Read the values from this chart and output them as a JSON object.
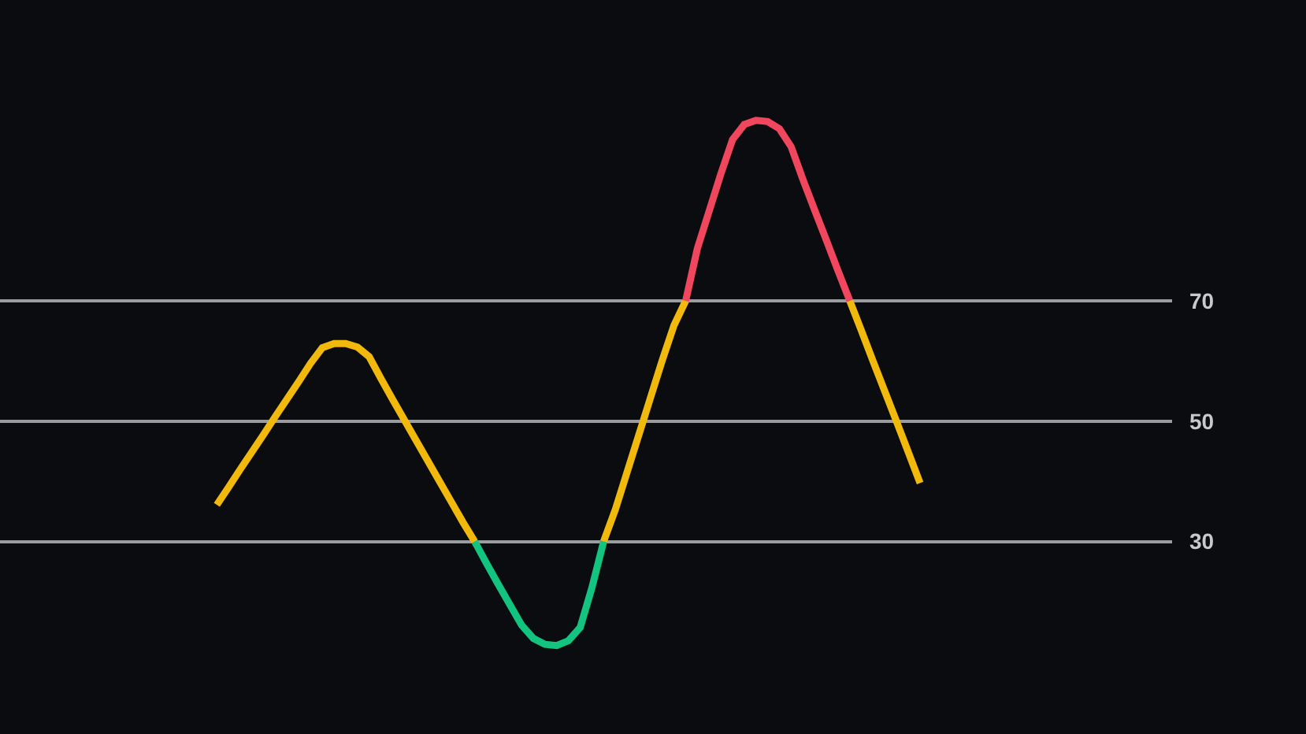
{
  "chart_data": {
    "type": "line",
    "categories": [
      null,
      null,
      null,
      null,
      null,
      null,
      null,
      null,
      null,
      null,
      null,
      null,
      null,
      null,
      null,
      null,
      null,
      null,
      null,
      null,
      null,
      null,
      null,
      null,
      null,
      null,
      null,
      null,
      null,
      null,
      null,
      null,
      null,
      null,
      null,
      null,
      null,
      null,
      null,
      null,
      null,
      null,
      null,
      null,
      null,
      null,
      null,
      null,
      null,
      null,
      null,
      null,
      null,
      null,
      null,
      null,
      null,
      null,
      null,
      null,
      null,
      null,
      null,
      null,
      null,
      null,
      null,
      null,
      null,
      null,
      null,
      null,
      null,
      null,
      null,
      null,
      null,
      null,
      null,
      null,
      null,
      null,
      null,
      null,
      null,
      null,
      null,
      null,
      null,
      null,
      null,
      null,
      null,
      null,
      null,
      null,
      null,
      null,
      null,
      null
    ],
    "series": [
      {
        "color": "#f0b90b",
        "values": [
          null,
          null,
          null,
          null,
          null,
          null,
          null,
          null,
          null,
          null,
          null,
          null,
          null,
          null,
          null,
          null,
          null,
          null,
          36.1,
          39,
          42,
          44.9,
          47.8,
          50.8,
          53.7,
          56.6,
          59.6,
          62.2,
          62.9,
          62.9,
          62.3,
          60.7,
          57.1,
          53.6,
          50.2,
          46.8,
          43.4,
          40,
          36.6,
          33.2,
          30,
          null,
          null,
          null,
          null,
          null,
          null,
          null,
          null,
          null,
          null,
          30,
          35.3,
          41.5,
          47.7,
          53.9,
          60.1,
          65.9,
          70,
          null,
          null,
          null,
          null,
          null,
          null,
          null,
          null,
          null,
          null,
          null,
          null,
          null,
          70,
          65,
          59.9,
          54.9,
          49.9,
          44.8,
          39.7,
          null,
          null,
          null,
          null,
          null,
          null,
          null,
          null,
          null,
          null,
          null,
          null,
          null,
          null,
          null,
          null,
          null,
          null,
          null,
          null,
          null
        ]
      },
      {
        "color": "#12c47f",
        "values": [
          null,
          null,
          null,
          null,
          null,
          null,
          null,
          null,
          null,
          null,
          null,
          null,
          null,
          null,
          null,
          null,
          null,
          null,
          null,
          null,
          null,
          null,
          null,
          null,
          null,
          null,
          null,
          null,
          null,
          null,
          null,
          null,
          null,
          null,
          null,
          null,
          null,
          null,
          null,
          null,
          30,
          26.4,
          22.9,
          19.5,
          16.1,
          13.9,
          12.9,
          12.7,
          13.5,
          15.7,
          22.3,
          30,
          null,
          null,
          null,
          null,
          null,
          null,
          null,
          null,
          null,
          null,
          null,
          null,
          null,
          null,
          null,
          null,
          null,
          null,
          null,
          null,
          null,
          null,
          null,
          null,
          null,
          null,
          null,
          null,
          null,
          null,
          null,
          null,
          null,
          null,
          null,
          null,
          null,
          null,
          null,
          null,
          null,
          null,
          null,
          null,
          null,
          null,
          null,
          null
        ]
      },
      {
        "color": "#f0475e",
        "values": [
          null,
          null,
          null,
          null,
          null,
          null,
          null,
          null,
          null,
          null,
          null,
          null,
          null,
          null,
          null,
          null,
          null,
          null,
          null,
          null,
          null,
          null,
          null,
          null,
          null,
          null,
          null,
          null,
          null,
          null,
          null,
          null,
          null,
          null,
          null,
          null,
          null,
          null,
          null,
          null,
          null,
          null,
          null,
          null,
          null,
          null,
          null,
          null,
          null,
          null,
          null,
          null,
          null,
          null,
          null,
          null,
          null,
          null,
          70,
          78.7,
          84.9,
          91.1,
          96.8,
          99.3,
          100,
          99.8,
          98.6,
          95.6,
          90.2,
          85.1,
          80.1,
          75,
          70,
          null,
          null,
          null,
          null,
          null,
          null,
          null,
          null,
          null,
          null,
          null,
          null,
          null,
          null,
          null,
          null,
          null,
          null,
          null,
          null,
          null,
          null,
          null,
          null,
          null,
          null,
          null
        ]
      }
    ],
    "ylim": [
      -2,
      120
    ],
    "yticks": [
      30,
      50,
      70
    ],
    "grid": "y",
    "tick_labels": "y",
    "marker": "none",
    "line_style": "solid"
  }
}
